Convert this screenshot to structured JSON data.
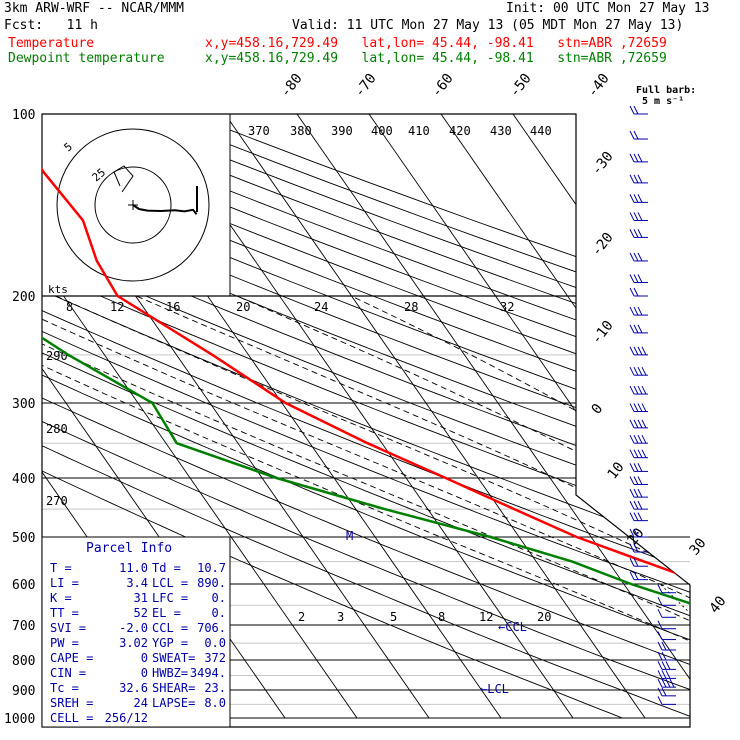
{
  "header": {
    "model": "3km ARW-WRF -- NCAR/MMM",
    "init": "Init: 00 UTC Mon 27 May 13",
    "fcst": "Fcst:   11 h",
    "valid": "Valid: 11 UTC Mon 27 May 13 (05 MDT Mon 27 May 13)"
  },
  "legend": [
    {
      "name": "Temperature",
      "info": "x,y=458.16,729.49   lat,lon= 45.44, -98.41   stn=ABR ,72659",
      "color": "#ff0000"
    },
    {
      "name": "Dewpoint temperature",
      "info": "x,y=458.16,729.49   lat,lon= 45.44, -98.41   stn=ABR ,72659",
      "color": "#008000"
    }
  ],
  "barb_legend": {
    "line1": "Full barb:",
    "line2": "5 m s⁻¹"
  },
  "parcel": {
    "title": "Parcel Info",
    "rows": [
      [
        "T  =",
        "11.0",
        "Td =",
        "10.7"
      ],
      [
        "LI =",
        "3.4",
        "LCL =",
        "890."
      ],
      [
        "K  =",
        "31",
        "LFC =",
        "0."
      ],
      [
        "TT =",
        "52",
        "EL  =",
        "0."
      ],
      [
        "SVI =",
        "-2.0",
        "CCL =",
        "706."
      ],
      [
        "PW =",
        "3.02",
        "YGP =",
        "0.0"
      ],
      [
        "CAPE =",
        "0",
        "SWEAT=",
        "372"
      ],
      [
        "CIN =",
        "0",
        "HWBZ=",
        "3494."
      ],
      [
        "Tc =",
        "32.6",
        "SHEAR=",
        "23."
      ],
      [
        "SREH =",
        "24",
        "LAPSE=",
        "8.0"
      ],
      [
        "CELL =",
        "256/12",
        "",
        ""
      ]
    ]
  },
  "annotations": {
    "ccl": "←CCL",
    "lcl": "←LCL",
    "m": "M",
    "kts": "kts"
  },
  "chart_data": {
    "type": "line",
    "title": "",
    "y_axis": {
      "label": "",
      "ticks": [
        100,
        200,
        300,
        400,
        500,
        600,
        700,
        800,
        900,
        1000
      ]
    },
    "isotherm_labels": [
      "-80",
      "-70",
      "-60",
      "-50",
      "-40",
      "-30",
      "-20",
      "-10",
      "0",
      "10",
      "20",
      "30",
      "40"
    ],
    "theta_labels": [
      "370",
      "380",
      "390",
      "400",
      "410",
      "420",
      "430",
      "440",
      "290",
      "280",
      "270"
    ],
    "mixing_ratio_labels": [
      "2",
      "3",
      "5",
      "8",
      "12",
      "20"
    ],
    "hodograph": {
      "ring_labels": [
        "5",
        "25"
      ],
      "speed_axis_label": "kts",
      "speed_ticks": [
        "8",
        "12",
        "16",
        "20",
        "24",
        "28",
        "32"
      ]
    },
    "series": [
      {
        "name": "Temperature",
        "color": "#ff0000",
        "points": [
          [
            100,
            -61.0
          ],
          [
            125,
            -60.8
          ],
          [
            150,
            -60.0
          ],
          [
            175,
            -62.0
          ],
          [
            200,
            -62.5
          ],
          [
            250,
            -55.0
          ],
          [
            300,
            -49.5
          ],
          [
            350,
            -42.0
          ],
          [
            400,
            -34.5
          ],
          [
            450,
            -28.0
          ],
          [
            500,
            -22.0
          ],
          [
            550,
            -15.0
          ],
          [
            600,
            -8.5
          ],
          [
            650,
            -3.0
          ],
          [
            700,
            1.5
          ],
          [
            750,
            5.0
          ],
          [
            800,
            8.0
          ],
          [
            850,
            12.0
          ],
          [
            880,
            17.0
          ],
          [
            910,
            12.0
          ],
          [
            940,
            11.0
          ]
        ]
      },
      {
        "name": "Dewpoint temperature",
        "color": "#008000",
        "points": [
          [
            100,
            -90.0
          ],
          [
            125,
            -95.0
          ],
          [
            150,
            -90.0
          ],
          [
            175,
            -84.0
          ],
          [
            200,
            -82.0
          ],
          [
            250,
            -75.0
          ],
          [
            300,
            -68.0
          ],
          [
            350,
            -68.5
          ],
          [
            400,
            -58.0
          ],
          [
            450,
            -46.0
          ],
          [
            500,
            -34.0
          ],
          [
            550,
            -25.0
          ],
          [
            600,
            -19.0
          ],
          [
            650,
            -12.0
          ],
          [
            700,
            -4.0
          ],
          [
            750,
            1.0
          ],
          [
            800,
            5.5
          ],
          [
            850,
            8.0
          ],
          [
            880,
            9.0
          ],
          [
            910,
            9.5
          ],
          [
            940,
            10.7
          ]
        ]
      }
    ],
    "hodograph_trace": [
      [
        0,
        0
      ],
      [
        0.5,
        1.0
      ],
      [
        1.2,
        1.4
      ],
      [
        2.3,
        1.5
      ],
      [
        3.5,
        1.3
      ],
      [
        4.3,
        1.6
      ],
      [
        5.0,
        1.2
      ],
      [
        5.3,
        2.3
      ]
    ],
    "wind_barbs": {
      "pressures": [
        100,
        110,
        120,
        130,
        140,
        150,
        160,
        175,
        190,
        200,
        215,
        230,
        250,
        270,
        290,
        310,
        330,
        350,
        370,
        390,
        410,
        430,
        450,
        470,
        500,
        530,
        560,
        590,
        620,
        650,
        680,
        710,
        740,
        770,
        800,
        830,
        860,
        890,
        920,
        950
      ],
      "speeds_kt": [
        15,
        20,
        25,
        25,
        30,
        30,
        30,
        25,
        25,
        20,
        25,
        30,
        35,
        35,
        40,
        40,
        40,
        35,
        35,
        30,
        30,
        30,
        25,
        25,
        20,
        20,
        20,
        15,
        10,
        10,
        10,
        10,
        10,
        15,
        20,
        25,
        30,
        35,
        20,
        10
      ]
    },
    "ylim": [
      100,
      1000
    ]
  }
}
